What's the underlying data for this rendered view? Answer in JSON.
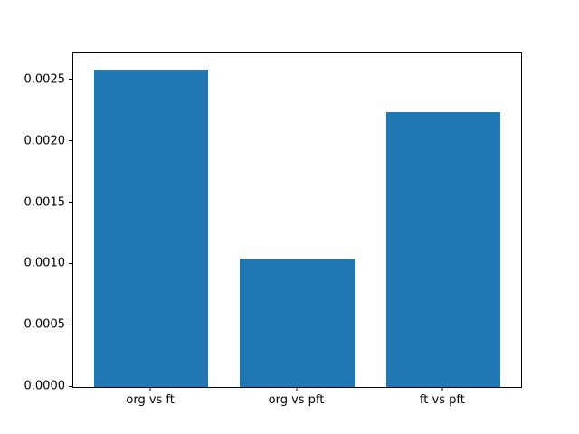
{
  "chart_data": {
    "type": "bar",
    "categories": [
      "org vs ft",
      "org vs pft",
      "ft vs pft"
    ],
    "values": [
      0.00259,
      0.00105,
      0.00224
    ],
    "title": "",
    "xlabel": "",
    "ylabel": "",
    "ylim": [
      0,
      0.00272
    ],
    "yticks": [
      0.0,
      0.0005,
      0.001,
      0.0015,
      0.002,
      0.0025
    ],
    "ytick_labels": [
      "0.0000",
      "0.0005",
      "0.0010",
      "0.0015",
      "0.0020",
      "0.0025"
    ],
    "bar_color": "#1f77b4",
    "axis_color": "#000000",
    "background_color": "#ffffff",
    "grid": false,
    "legend": false,
    "bar_centers_pct": [
      17.4,
      50.0,
      82.6
    ],
    "bar_width_pct": 25.6
  }
}
